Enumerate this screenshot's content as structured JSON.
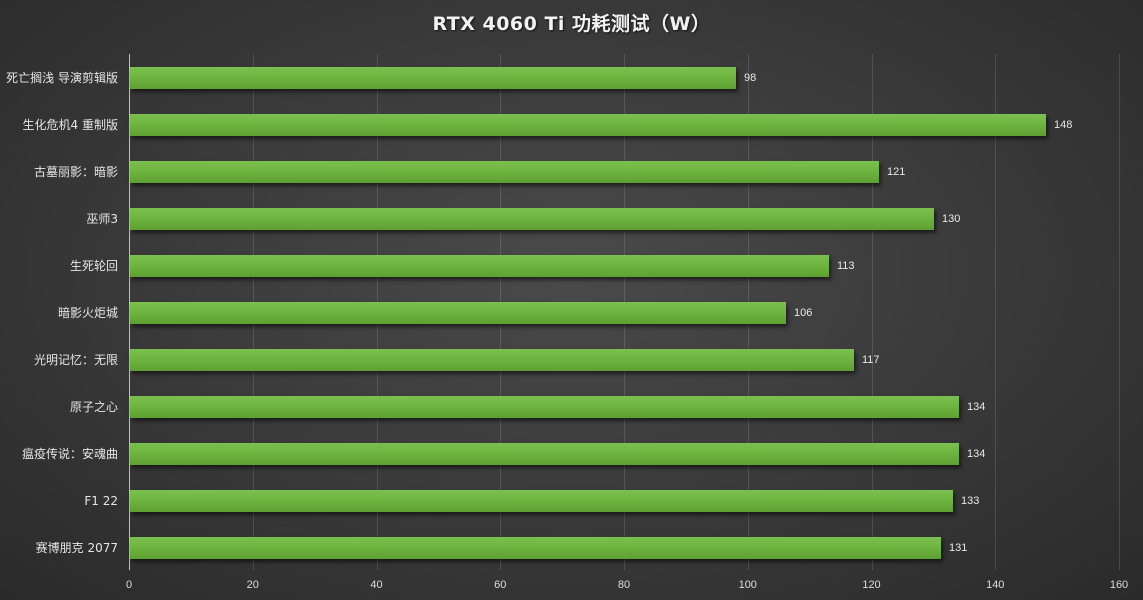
{
  "chart_data": {
    "type": "bar",
    "orientation": "horizontal",
    "title": "RTX 4060 Ti 功耗测试（W）",
    "xlabel": "",
    "ylabel": "",
    "xlim": [
      0,
      160
    ],
    "x_ticks": [
      0,
      20,
      40,
      60,
      80,
      100,
      120,
      140,
      160
    ],
    "grid": true,
    "legend": null,
    "bar_color": "#6cb43e",
    "categories": [
      "死亡搁浅 导演剪辑版",
      "生化危机4 重制版",
      "古墓丽影：暗影",
      "巫师3",
      "生死轮回",
      "暗影火炬城",
      "光明记忆：无限",
      "原子之心",
      "瘟疫传说：安魂曲",
      "F1 22",
      "赛博朋克 2077"
    ],
    "values": [
      98,
      148,
      121,
      130,
      113,
      106,
      117,
      134,
      134,
      133,
      131
    ]
  },
  "title": "RTX 4060 Ti 功耗测试（W）",
  "rows": [
    {
      "label": "死亡搁浅 导演剪辑版",
      "value": "98"
    },
    {
      "label": "生化危机4 重制版",
      "value": "148"
    },
    {
      "label": "古墓丽影：暗影",
      "value": "121"
    },
    {
      "label": "巫师3",
      "value": "130"
    },
    {
      "label": "生死轮回",
      "value": "113"
    },
    {
      "label": "暗影火炬城",
      "value": "106"
    },
    {
      "label": "光明记忆：无限",
      "value": "117"
    },
    {
      "label": "原子之心",
      "value": "134"
    },
    {
      "label": "瘟疫传说：安魂曲",
      "value": "134"
    },
    {
      "label": "F1 22",
      "value": "133"
    },
    {
      "label": "赛博朋克 2077",
      "value": "131"
    }
  ],
  "ticks": [
    "0",
    "20",
    "40",
    "60",
    "80",
    "100",
    "120",
    "140",
    "160"
  ]
}
